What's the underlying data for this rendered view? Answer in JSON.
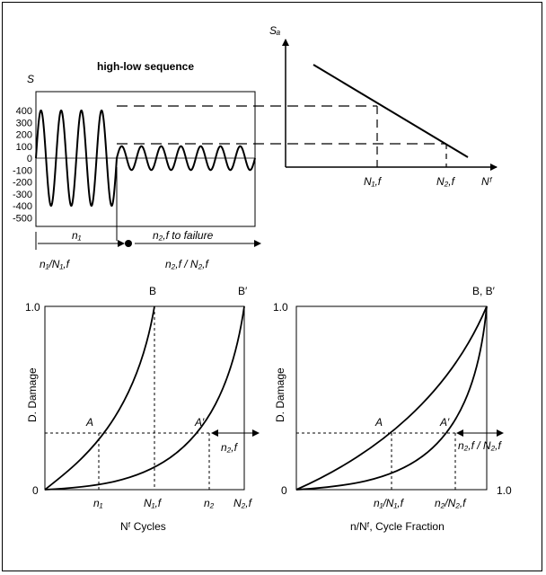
{
  "signal_panel": {
    "title": "high-low sequence",
    "y_axis_label": "S",
    "y_ticks": [
      "400",
      "300",
      "200",
      "100",
      "0",
      "-100",
      "-200",
      "-300",
      "-400",
      "-500"
    ],
    "high_amplitude": 400,
    "low_amplitude": 100,
    "high_cycles_shown": 4,
    "low_cycles_shown": 7,
    "n1_label": "n₁",
    "n2f_label": "n₂,f to failure",
    "n1_fraction": "n₁/N₁,f",
    "n2f_fraction": "n₂,f / N₂,f"
  },
  "sn_panel": {
    "y_axis_label": "Sₐ",
    "x_axis_label": "Nᶠ",
    "n1f_label": "N₁,f",
    "n2f_label": "N₂,f"
  },
  "damage_cycles_panel": {
    "y_axis_label": "D. Damage",
    "x_axis_label": "Nᶠ Cycles",
    "y_top": "1.0",
    "origin": "0",
    "point_b": "B",
    "point_b_prime": "B′",
    "point_a": "A",
    "point_a_prime": "A′",
    "x_n1": "n₁",
    "x_N1f": "N₁,f",
    "x_n2": "n₂",
    "x_N2f": "N₂,f",
    "arrow_label": "n₂,f"
  },
  "damage_fraction_panel": {
    "y_axis_label": "D. Damage",
    "x_axis_label": "n/Nᶠ, Cycle Fraction",
    "y_top": "1.0",
    "origin": "0",
    "x_end": "1.0",
    "point_bb": "B, B′",
    "point_a": "A",
    "point_a_prime": "A′",
    "x_frac1": "n₁/N₁,f",
    "x_frac2": "n₂/N₂,f",
    "arrow_label": "n₂,f / N₂,f"
  }
}
